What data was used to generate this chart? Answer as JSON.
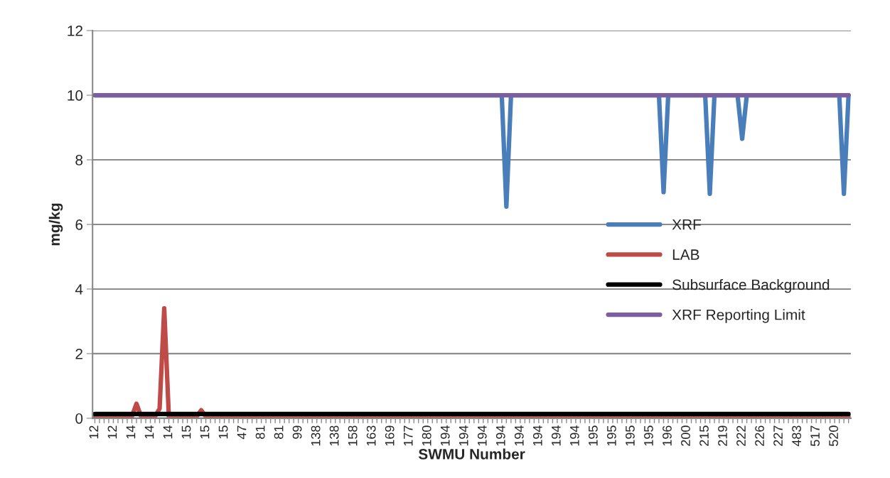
{
  "chart_data": {
    "type": "line",
    "xlabel": "SWMU Number",
    "ylabel": "mg/kg",
    "categories": [
      "12",
      null,
      null,
      null,
      "12",
      null,
      null,
      null,
      "14",
      null,
      null,
      null,
      "14",
      null,
      null,
      null,
      "14",
      null,
      null,
      null,
      "15",
      null,
      null,
      null,
      "15",
      null,
      null,
      null,
      "15",
      null,
      null,
      null,
      "47",
      null,
      null,
      null,
      "81",
      null,
      null,
      null,
      "81",
      null,
      null,
      null,
      "99",
      null,
      null,
      null,
      "138",
      null,
      null,
      null,
      "138",
      null,
      null,
      null,
      "158",
      null,
      null,
      null,
      "163",
      null,
      null,
      null,
      "169",
      null,
      null,
      null,
      "177",
      null,
      null,
      null,
      "180",
      null,
      null,
      null,
      "194",
      null,
      null,
      null,
      "194",
      null,
      null,
      null,
      "194",
      null,
      null,
      null,
      "194",
      null,
      null,
      null,
      "194",
      null,
      null,
      null,
      "194",
      null,
      null,
      null,
      "194",
      null,
      null,
      null,
      "194",
      null,
      null,
      null,
      "195",
      null,
      null,
      null,
      "195",
      null,
      null,
      null,
      "195",
      null,
      null,
      null,
      "195",
      null,
      null,
      null,
      "196",
      null,
      null,
      null,
      "200",
      null,
      null,
      null,
      "215",
      null,
      null,
      null,
      "219",
      null,
      null,
      null,
      "222",
      null,
      null,
      null,
      "226",
      null,
      null,
      null,
      "227",
      null,
      null,
      null,
      "483",
      null,
      null,
      null,
      "517",
      null,
      null,
      null,
      "520",
      null,
      null,
      null
    ],
    "series": [
      {
        "name": "XRF",
        "color": "#4a7ebb",
        "values": [
          10,
          10,
          10,
          10,
          10,
          10,
          10,
          10,
          10,
          10,
          10,
          10,
          10,
          10,
          10,
          10,
          10,
          10,
          10,
          10,
          10,
          10,
          10,
          10,
          10,
          10,
          10,
          10,
          10,
          10,
          10,
          10,
          10,
          10,
          10,
          10,
          10,
          10,
          10,
          10,
          10,
          10,
          10,
          10,
          10,
          10,
          10,
          10,
          10,
          10,
          10,
          10,
          10,
          10,
          10,
          10,
          10,
          10,
          10,
          10,
          10,
          10,
          10,
          10,
          10,
          10,
          10,
          10,
          10,
          10,
          10,
          10,
          10,
          10,
          10,
          10,
          10,
          10,
          10,
          10,
          10,
          10,
          10,
          10,
          10,
          10,
          10,
          10,
          10,
          6.55,
          10,
          10,
          10,
          10,
          10,
          10,
          10,
          10,
          10,
          10,
          10,
          10,
          10,
          10,
          10,
          10,
          10,
          10,
          10,
          10,
          10,
          10,
          10,
          10,
          10,
          10,
          10,
          10,
          10,
          10,
          10,
          10,
          10,
          7,
          10,
          10,
          10,
          10,
          10,
          10,
          10,
          10,
          10,
          6.95,
          10,
          10,
          10,
          10,
          10,
          10,
          8.65,
          10,
          10,
          10,
          10,
          10,
          10,
          10,
          10,
          10,
          10,
          10,
          10,
          10,
          10,
          10,
          10,
          10,
          10,
          10,
          10,
          10,
          6.95,
          10
        ]
      },
      {
        "name": "LAB",
        "color": "#be4b48",
        "values": [
          0.05,
          0.05,
          0.05,
          0.05,
          0.05,
          0.05,
          0.05,
          0.05,
          0.05,
          0.45,
          0.05,
          0.05,
          0.05,
          0.05,
          0.3,
          3.4,
          0.05,
          0.05,
          0.05,
          0.05,
          0.05,
          0.05,
          0.05,
          0.25,
          0.05,
          0.05,
          0.05,
          0.05,
          0.05,
          0.05,
          0.05,
          0.05,
          0.05,
          0.05,
          0.05,
          0.05,
          0.05,
          0.05,
          0.05,
          0.05,
          0.05,
          0.05,
          0.05,
          0.05,
          0.05,
          0.05,
          0.05,
          0.05,
          0.05,
          0.05,
          0.05,
          0.05,
          0.05,
          0.05,
          0.05,
          0.05,
          0.05,
          0.05,
          0.05,
          0.05,
          0.05,
          0.05,
          0.05,
          0.05,
          0.05,
          0.05,
          0.05,
          0.05,
          0.05,
          0.05,
          0.05,
          0.05,
          0.05,
          0.05,
          0.05,
          0.05,
          0.05,
          0.05,
          0.05,
          0.05,
          0.05,
          0.05,
          0.05,
          0.05,
          0.05,
          0.05,
          0.05,
          0.05,
          0.05,
          0.05,
          0.05,
          0.05,
          0.05,
          0.05,
          0.05,
          0.05,
          0.05,
          0.05,
          0.05,
          0.05,
          0.05,
          0.05,
          0.05,
          0.05,
          0.05,
          0.05,
          0.05,
          0.05,
          0.05,
          0.05,
          0.05,
          0.05,
          0.05,
          0.05,
          0.05,
          0.05,
          0.05,
          0.05,
          0.05,
          0.05,
          0.05,
          0.05,
          0.05,
          0.05,
          0.05,
          0.05,
          0.05,
          0.05,
          0.05,
          0.05,
          0.05,
          0.05,
          0.05,
          0.05,
          0.05,
          0.05,
          0.05,
          0.05,
          0.05,
          0.05,
          0.05,
          0.05,
          0.05,
          0.05,
          0.05,
          0.05,
          0.05,
          0.05,
          0.05,
          0.05,
          0.05,
          0.05,
          0.05,
          0.05,
          0.05,
          0.05,
          0.05,
          0.05,
          0.05,
          0.05,
          0.05,
          0.05,
          0.05,
          0.05
        ]
      },
      {
        "name": "Subsurface Background",
        "color": "#000000",
        "values": [
          0.13,
          0.13,
          0.13,
          0.13,
          0.13,
          0.13,
          0.13,
          0.13,
          0.13,
          0.13,
          0.13,
          0.13,
          0.13,
          0.13,
          0.13,
          0.13,
          0.13,
          0.13,
          0.13,
          0.13,
          0.13,
          0.13,
          0.13,
          0.13,
          0.13,
          0.13,
          0.13,
          0.13,
          0.13,
          0.13,
          0.13,
          0.13,
          0.13,
          0.13,
          0.13,
          0.13,
          0.13,
          0.13,
          0.13,
          0.13,
          0.13,
          0.13,
          0.13,
          0.13,
          0.13,
          0.13,
          0.13,
          0.13,
          0.13,
          0.13,
          0.13,
          0.13,
          0.13,
          0.13,
          0.13,
          0.13,
          0.13,
          0.13,
          0.13,
          0.13,
          0.13,
          0.13,
          0.13,
          0.13,
          0.13,
          0.13,
          0.13,
          0.13,
          0.13,
          0.13,
          0.13,
          0.13,
          0.13,
          0.13,
          0.13,
          0.13,
          0.13,
          0.13,
          0.13,
          0.13,
          0.13,
          0.13,
          0.13,
          0.13,
          0.13,
          0.13,
          0.13,
          0.13,
          0.13,
          0.13,
          0.13,
          0.13,
          0.13,
          0.13,
          0.13,
          0.13,
          0.13,
          0.13,
          0.13,
          0.13,
          0.13,
          0.13,
          0.13,
          0.13,
          0.13,
          0.13,
          0.13,
          0.13,
          0.13,
          0.13,
          0.13,
          0.13,
          0.13,
          0.13,
          0.13,
          0.13,
          0.13,
          0.13,
          0.13,
          0.13,
          0.13,
          0.13,
          0.13,
          0.13,
          0.13,
          0.13,
          0.13,
          0.13,
          0.13,
          0.13,
          0.13,
          0.13,
          0.13,
          0.13,
          0.13,
          0.13,
          0.13,
          0.13,
          0.13,
          0.13,
          0.13,
          0.13,
          0.13,
          0.13,
          0.13,
          0.13,
          0.13,
          0.13,
          0.13,
          0.13,
          0.13,
          0.13,
          0.13,
          0.13,
          0.13,
          0.13,
          0.13,
          0.13,
          0.13,
          0.13,
          0.13,
          0.13,
          0.13,
          0.13
        ]
      },
      {
        "name": "XRF Reporting Limit",
        "color": "#7d5fa0",
        "values": [
          10,
          10,
          10,
          10,
          10,
          10,
          10,
          10,
          10,
          10,
          10,
          10,
          10,
          10,
          10,
          10,
          10,
          10,
          10,
          10,
          10,
          10,
          10,
          10,
          10,
          10,
          10,
          10,
          10,
          10,
          10,
          10,
          10,
          10,
          10,
          10,
          10,
          10,
          10,
          10,
          10,
          10,
          10,
          10,
          10,
          10,
          10,
          10,
          10,
          10,
          10,
          10,
          10,
          10,
          10,
          10,
          10,
          10,
          10,
          10,
          10,
          10,
          10,
          10,
          10,
          10,
          10,
          10,
          10,
          10,
          10,
          10,
          10,
          10,
          10,
          10,
          10,
          10,
          10,
          10,
          10,
          10,
          10,
          10,
          10,
          10,
          10,
          10,
          10,
          10,
          10,
          10,
          10,
          10,
          10,
          10,
          10,
          10,
          10,
          10,
          10,
          10,
          10,
          10,
          10,
          10,
          10,
          10,
          10,
          10,
          10,
          10,
          10,
          10,
          10,
          10,
          10,
          10,
          10,
          10,
          10,
          10,
          10,
          10,
          10,
          10,
          10,
          10,
          10,
          10,
          10,
          10,
          10,
          10,
          10,
          10,
          10,
          10,
          10,
          10,
          10,
          10,
          10,
          10,
          10,
          10,
          10,
          10,
          10,
          10,
          10,
          10,
          10,
          10,
          10,
          10,
          10,
          10,
          10,
          10,
          10,
          10,
          10,
          10
        ]
      }
    ],
    "ylim": [
      0,
      12
    ],
    "yticks": [
      0,
      2,
      4,
      6,
      8,
      10,
      12
    ],
    "grid": "y",
    "legend": "right",
    "marker": "none",
    "line_style": "solid"
  }
}
